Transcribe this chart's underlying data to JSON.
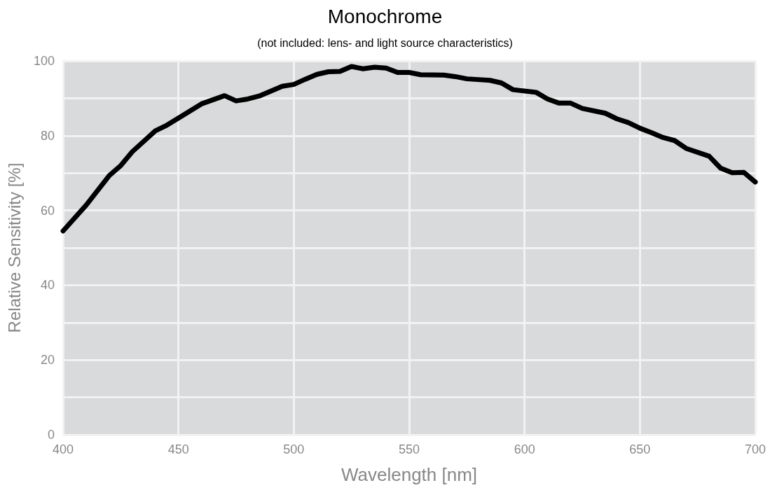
{
  "chart_data": {
    "type": "line",
    "title": "Monochrome",
    "subtitle": "(not included: lens- and light source characteristics)",
    "xlabel": "Wavelength [nm]",
    "ylabel": "Relative Sensitivity [%]",
    "x": [
      400,
      410,
      420,
      425,
      430,
      440,
      445,
      460,
      470,
      475,
      480,
      485,
      495,
      500,
      505,
      510,
      515,
      520,
      525,
      530,
      535,
      540,
      545,
      550,
      555,
      565,
      570,
      575,
      585,
      590,
      595,
      605,
      610,
      615,
      620,
      625,
      635,
      640,
      645,
      650,
      655,
      660,
      665,
      670,
      680,
      685,
      690,
      695,
      700
    ],
    "series": [
      {
        "color": "#000000",
        "values": [
          54.5,
          61.4,
          69.3,
          72.0,
          75.7,
          81.3,
          82.8,
          88.5,
          90.7,
          89.3,
          89.8,
          90.6,
          93.2,
          93.7,
          95.1,
          96.4,
          97.1,
          97.2,
          98.5,
          97.9,
          98.3,
          98.1,
          96.9,
          96.9,
          96.3,
          96.2,
          95.8,
          95.2,
          94.8,
          94.1,
          92.3,
          91.6,
          89.8,
          88.7,
          88.7,
          87.3,
          86.0,
          84.5,
          83.5,
          82.0,
          80.8,
          79.5,
          78.7,
          76.6,
          74.5,
          71.3,
          70.1,
          70.2,
          67.6
        ]
      }
    ],
    "xlim": [
      400,
      700
    ],
    "xticks": [
      400,
      450,
      500,
      550,
      600,
      650,
      700
    ],
    "ylim": [
      0,
      100
    ],
    "yticks": [
      0,
      {
        "value": 10,
        "label": null
      },
      20,
      {
        "value": 30,
        "label": null
      },
      40,
      {
        "value": 50,
        "label": null
      },
      60,
      {
        "value": 70,
        "label": null
      },
      80,
      {
        "value": 90,
        "label": null
      },
      100
    ],
    "grid": true,
    "marker": "none",
    "line_style": "solid"
  }
}
